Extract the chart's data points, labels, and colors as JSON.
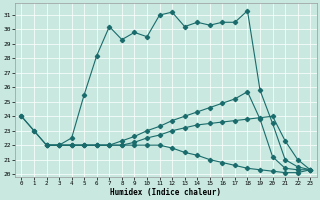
{
  "title": "",
  "xlabel": "Humidex (Indice chaleur)",
  "xlim": [
    -0.5,
    23.5
  ],
  "ylim": [
    19.8,
    31.8
  ],
  "yticks": [
    20,
    21,
    22,
    23,
    24,
    25,
    26,
    27,
    28,
    29,
    30,
    31
  ],
  "xticks": [
    0,
    1,
    2,
    3,
    4,
    5,
    6,
    7,
    8,
    9,
    10,
    11,
    12,
    13,
    14,
    15,
    16,
    17,
    18,
    19,
    20,
    21,
    22,
    23
  ],
  "bg_color": "#c8e8e0",
  "line_color": "#1a6b6b",
  "line1_x": [
    0,
    1,
    2,
    3,
    4,
    5,
    6,
    7,
    8,
    9,
    10,
    11,
    12,
    13,
    14,
    15,
    16,
    17,
    18,
    19,
    20,
    21,
    22,
    23
  ],
  "line1_y": [
    24,
    23,
    22,
    22,
    22.5,
    25.5,
    28.2,
    30.2,
    29.3,
    29.8,
    29.5,
    31.0,
    31.2,
    30.2,
    30.5,
    30.3,
    30.5,
    30.5,
    31.3,
    25.8,
    23.5,
    21.0,
    20.5,
    20.3
  ],
  "line2_x": [
    0,
    1,
    2,
    3,
    4,
    5,
    6,
    7,
    8,
    9,
    10,
    11,
    12,
    13,
    14,
    15,
    16,
    17,
    18,
    19,
    20,
    21,
    22,
    23
  ],
  "line2_y": [
    24,
    23,
    22,
    22,
    22,
    22,
    22,
    22,
    22.3,
    22.6,
    23.0,
    23.3,
    23.7,
    24.0,
    24.3,
    24.6,
    24.9,
    25.2,
    25.7,
    23.8,
    21.2,
    20.4,
    20.3,
    20.3
  ],
  "line3_x": [
    2,
    3,
    4,
    5,
    6,
    7,
    8,
    9,
    10,
    11,
    12,
    13,
    14,
    15,
    16,
    17,
    18,
    19,
    20,
    21,
    22,
    23
  ],
  "line3_y": [
    22,
    22,
    22,
    22,
    22,
    22,
    22,
    22.2,
    22.5,
    22.7,
    23.0,
    23.2,
    23.4,
    23.5,
    23.6,
    23.7,
    23.8,
    23.9,
    24.0,
    22.3,
    21.0,
    20.3
  ],
  "line4_x": [
    2,
    3,
    4,
    5,
    6,
    7,
    8,
    9,
    10,
    11,
    12,
    13,
    14,
    15,
    16,
    17,
    18,
    19,
    20,
    21,
    22,
    23
  ],
  "line4_y": [
    22,
    22,
    22,
    22,
    22,
    22,
    22,
    22,
    22,
    22,
    21.8,
    21.5,
    21.3,
    21.0,
    20.8,
    20.6,
    20.4,
    20.3,
    20.2,
    20.1,
    20.1,
    20.3
  ]
}
